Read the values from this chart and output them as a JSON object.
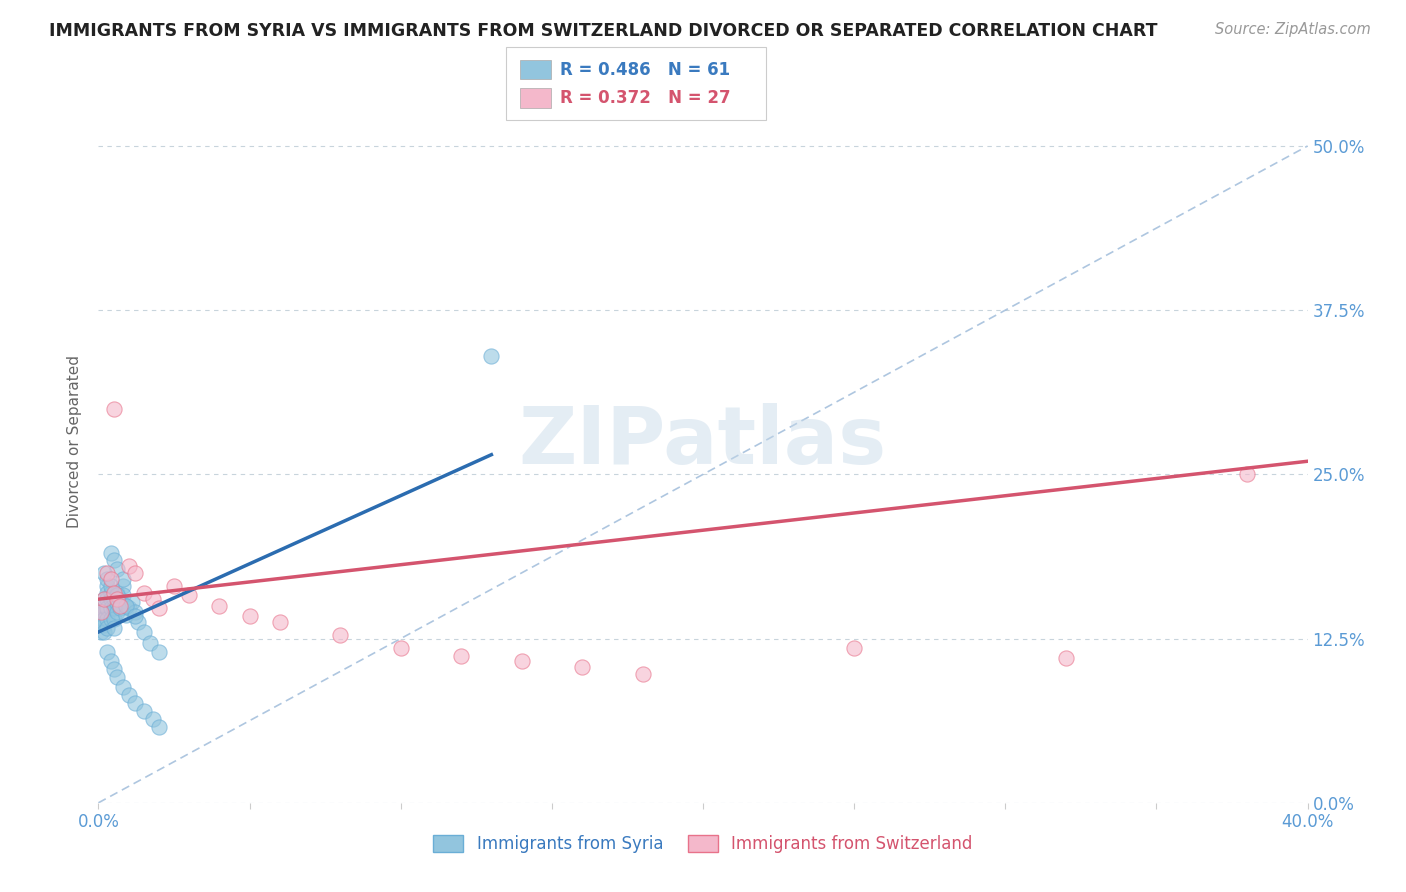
{
  "title": "IMMIGRANTS FROM SYRIA VS IMMIGRANTS FROM SWITZERLAND DIVORCED OR SEPARATED CORRELATION CHART",
  "source": "Source: ZipAtlas.com",
  "ylabel": "Divorced or Separated",
  "xlim": [
    0.0,
    0.4
  ],
  "ylim": [
    0.0,
    0.55
  ],
  "ytick_labels_right": [
    "0.0%",
    "12.5%",
    "25.0%",
    "37.5%",
    "50.0%"
  ],
  "ytick_vals": [
    0.0,
    0.125,
    0.25,
    0.375,
    0.5
  ],
  "series1_name": "Immigrants from Syria",
  "series1_R": 0.486,
  "series1_N": 61,
  "series1_color": "#92c5de",
  "series1_edge": "#6aaed6",
  "series2_name": "Immigrants from Switzerland",
  "series2_R": 0.372,
  "series2_N": 27,
  "series2_color": "#f4b8cb",
  "series2_edge": "#e8728a",
  "trend1_color": "#2b6cb0",
  "trend2_color": "#d4546e",
  "diag_color": "#9ab8d8",
  "watermark": "ZIPatlas",
  "background_color": "#ffffff",
  "series1_x": [
    0.001,
    0.001,
    0.001,
    0.001,
    0.002,
    0.002,
    0.002,
    0.002,
    0.002,
    0.002,
    0.003,
    0.003,
    0.003,
    0.003,
    0.003,
    0.003,
    0.004,
    0.004,
    0.004,
    0.004,
    0.005,
    0.005,
    0.005,
    0.005,
    0.006,
    0.006,
    0.006,
    0.007,
    0.007,
    0.008,
    0.008,
    0.009,
    0.009,
    0.01,
    0.011,
    0.012,
    0.013,
    0.015,
    0.017,
    0.02,
    0.003,
    0.004,
    0.005,
    0.006,
    0.008,
    0.01,
    0.012,
    0.015,
    0.018,
    0.02,
    0.004,
    0.005,
    0.006,
    0.008,
    0.002,
    0.003,
    0.004,
    0.006,
    0.009,
    0.012,
    0.13
  ],
  "series1_y": [
    0.145,
    0.14,
    0.135,
    0.13,
    0.155,
    0.15,
    0.145,
    0.14,
    0.135,
    0.13,
    0.165,
    0.16,
    0.155,
    0.148,
    0.14,
    0.133,
    0.16,
    0.155,
    0.148,
    0.14,
    0.155,
    0.148,
    0.14,
    0.133,
    0.16,
    0.152,
    0.145,
    0.155,
    0.148,
    0.165,
    0.158,
    0.15,
    0.143,
    0.148,
    0.153,
    0.145,
    0.138,
    0.13,
    0.122,
    0.115,
    0.115,
    0.108,
    0.102,
    0.096,
    0.088,
    0.082,
    0.076,
    0.07,
    0.064,
    0.058,
    0.19,
    0.185,
    0.178,
    0.17,
    0.175,
    0.17,
    0.165,
    0.158,
    0.15,
    0.142,
    0.34
  ],
  "series2_x": [
    0.001,
    0.002,
    0.003,
    0.004,
    0.005,
    0.006,
    0.007,
    0.01,
    0.012,
    0.015,
    0.018,
    0.02,
    0.025,
    0.03,
    0.04,
    0.05,
    0.06,
    0.08,
    0.1,
    0.12,
    0.14,
    0.16,
    0.18,
    0.25,
    0.32,
    0.005,
    0.38
  ],
  "series2_y": [
    0.145,
    0.155,
    0.175,
    0.17,
    0.16,
    0.155,
    0.15,
    0.18,
    0.175,
    0.16,
    0.155,
    0.148,
    0.165,
    0.158,
    0.15,
    0.142,
    0.138,
    0.128,
    0.118,
    0.112,
    0.108,
    0.103,
    0.098,
    0.118,
    0.11,
    0.3,
    0.25
  ]
}
